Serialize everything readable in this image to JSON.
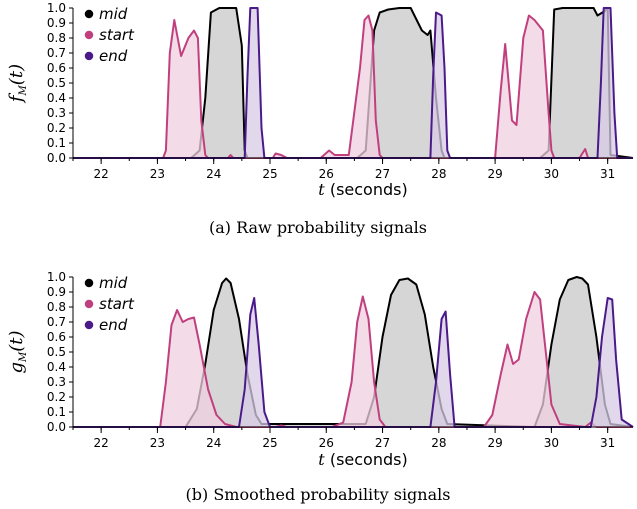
{
  "colors": {
    "mid": "#000000",
    "start": "#c0407f",
    "end": "#4b1a8a",
    "mid_fill": "#c8c8c8",
    "start_fill": "#f0cfe0",
    "end_fill": "#d8cbe6"
  },
  "chart_data": [
    {
      "type": "area",
      "caption": "(a) Raw probability signals",
      "ylabel_main": "f",
      "ylabel_sub": "M",
      "ylabel_arg": "(t)",
      "xlabel_var": "t",
      "xlabel_unit": " (seconds)",
      "xlim": [
        21.5,
        31.45
      ],
      "ylim": [
        0,
        1.0
      ],
      "x_ticks": [
        "22",
        "23",
        "24",
        "25",
        "26",
        "27",
        "28",
        "29",
        "30",
        "31"
      ],
      "y_ticks": [
        "0.0",
        "0.1",
        "0.2",
        "0.3",
        "0.4",
        "0.5",
        "0.6",
        "0.7",
        "0.8",
        "0.9",
        "1.0"
      ],
      "legend": {
        "placement": "top-left",
        "entries": [
          "mid",
          "start",
          "end"
        ]
      },
      "series": [
        {
          "name": "mid",
          "x": [
            21.5,
            23.6,
            23.75,
            23.85,
            23.95,
            24.1,
            24.3,
            24.4,
            24.5,
            24.55,
            24.6,
            26.55,
            26.7,
            26.85,
            26.95,
            27.1,
            27.3,
            27.5,
            27.7,
            27.8,
            27.85,
            27.95,
            28.05,
            28.1,
            28.15,
            29.8,
            29.95,
            30.05,
            30.2,
            30.5,
            30.75,
            30.82,
            30.95,
            31.0,
            31.05,
            31.45
          ],
          "y": [
            0,
            0,
            0.05,
            0.4,
            0.97,
            1.0,
            1.0,
            1.0,
            0.75,
            0.05,
            0,
            0,
            0.05,
            0.85,
            0.97,
            0.99,
            1.0,
            1.0,
            0.85,
            0.82,
            0.85,
            0.4,
            0.05,
            0,
            0,
            0,
            0.05,
            0.99,
            1.0,
            1.0,
            1.0,
            0.95,
            0.98,
            1.0,
            0.02,
            0
          ]
        },
        {
          "name": "start",
          "x": [
            21.5,
            23.1,
            23.15,
            23.22,
            23.3,
            23.42,
            23.55,
            23.65,
            23.72,
            23.78,
            23.85,
            23.9,
            24.25,
            24.3,
            24.35,
            24.5,
            25.05,
            25.1,
            25.2,
            25.3,
            25.9,
            26.05,
            26.15,
            26.4,
            26.6,
            26.68,
            26.75,
            26.82,
            26.88,
            26.95,
            27.0,
            29.0,
            29.1,
            29.18,
            29.3,
            29.38,
            29.5,
            29.6,
            29.7,
            29.85,
            29.95,
            30.0,
            30.05,
            30.5,
            30.55,
            30.6,
            30.65,
            31.45
          ],
          "y": [
            0,
            0,
            0.05,
            0.7,
            0.92,
            0.68,
            0.8,
            0.85,
            0.8,
            0.25,
            0.02,
            0,
            0,
            0.02,
            0,
            0,
            0,
            0.03,
            0.02,
            0,
            0,
            0.05,
            0.02,
            0.02,
            0.6,
            0.92,
            0.95,
            0.85,
            0.25,
            0.02,
            0,
            0,
            0.45,
            0.76,
            0.25,
            0.22,
            0.8,
            0.95,
            0.92,
            0.85,
            0.3,
            0.05,
            0,
            0,
            0.03,
            0.06,
            0,
            0
          ]
        },
        {
          "name": "end",
          "x": [
            21.5,
            24.55,
            24.6,
            24.65,
            24.78,
            24.85,
            24.9,
            27.85,
            27.9,
            27.95,
            28.05,
            28.1,
            28.15,
            28.2,
            30.82,
            30.88,
            30.93,
            31.05,
            31.12,
            31.17,
            31.45
          ],
          "y": [
            0,
            0,
            0.55,
            1.0,
            1.0,
            0.2,
            0,
            0,
            0.55,
            0.97,
            0.95,
            0.6,
            0.05,
            0,
            0,
            0.5,
            1.0,
            1.0,
            0.3,
            0,
            0
          ]
        }
      ]
    },
    {
      "type": "area",
      "caption": "(b) Smoothed probability signals",
      "ylabel_main": "g",
      "ylabel_sub": "M",
      "ylabel_arg": "(t)",
      "xlabel_var": "t",
      "xlabel_unit": " (seconds)",
      "xlim": [
        21.5,
        31.45
      ],
      "ylim": [
        0,
        1.0
      ],
      "x_ticks": [
        "22",
        "23",
        "24",
        "25",
        "26",
        "27",
        "28",
        "29",
        "30",
        "31"
      ],
      "y_ticks": [
        "0.0",
        "0.1",
        "0.2",
        "0.3",
        "0.4",
        "0.5",
        "0.6",
        "0.7",
        "0.8",
        "0.9",
        "1.0"
      ],
      "legend": {
        "placement": "top-left",
        "entries": [
          "mid",
          "start",
          "end"
        ]
      },
      "series": [
        {
          "name": "mid",
          "x": [
            21.5,
            23.5,
            23.7,
            23.85,
            24.0,
            24.15,
            24.22,
            24.3,
            24.45,
            24.6,
            24.75,
            24.85,
            26.7,
            26.85,
            27.0,
            27.15,
            27.3,
            27.45,
            27.6,
            27.75,
            27.9,
            28.05,
            28.15,
            29.7,
            29.85,
            30.0,
            30.15,
            30.3,
            30.45,
            30.55,
            30.65,
            30.8,
            30.95,
            31.05,
            31.45
          ],
          "y": [
            0,
            0,
            0.12,
            0.42,
            0.78,
            0.96,
            0.99,
            0.96,
            0.72,
            0.35,
            0.08,
            0.02,
            0.02,
            0.2,
            0.6,
            0.88,
            0.98,
            0.99,
            0.95,
            0.75,
            0.4,
            0.12,
            0.02,
            0,
            0.15,
            0.55,
            0.85,
            0.98,
            1.0,
            0.99,
            0.95,
            0.6,
            0.15,
            0.02,
            0
          ]
        },
        {
          "name": "start",
          "x": [
            21.5,
            23.05,
            23.15,
            23.25,
            23.35,
            23.45,
            23.55,
            23.65,
            23.75,
            23.9,
            24.05,
            24.2,
            24.4,
            25.1,
            25.2,
            25.3,
            26.1,
            26.3,
            26.45,
            26.55,
            26.65,
            26.75,
            26.85,
            26.95,
            27.05,
            28.8,
            28.95,
            29.1,
            29.22,
            29.32,
            29.42,
            29.55,
            29.7,
            29.8,
            29.9,
            30.0,
            30.15,
            30.6,
            30.7,
            30.8,
            31.45
          ],
          "y": [
            0,
            0,
            0.3,
            0.68,
            0.78,
            0.7,
            0.72,
            0.73,
            0.55,
            0.25,
            0.08,
            0.02,
            0,
            0,
            0.01,
            0,
            0,
            0.03,
            0.3,
            0.7,
            0.87,
            0.72,
            0.3,
            0.05,
            0,
            0,
            0.08,
            0.35,
            0.55,
            0.42,
            0.45,
            0.72,
            0.9,
            0.85,
            0.5,
            0.15,
            0.02,
            0,
            0.03,
            0,
            0
          ]
        },
        {
          "name": "end",
          "x": [
            21.5,
            24.45,
            24.55,
            24.65,
            24.72,
            24.8,
            24.9,
            25.0,
            27.85,
            27.95,
            28.05,
            28.12,
            28.2,
            28.28,
            30.7,
            30.8,
            30.9,
            31.0,
            31.08,
            31.15,
            31.25,
            31.45
          ],
          "y": [
            0,
            0,
            0.25,
            0.75,
            0.86,
            0.55,
            0.1,
            0,
            0,
            0.3,
            0.72,
            0.77,
            0.35,
            0,
            0,
            0.2,
            0.6,
            0.86,
            0.85,
            0.45,
            0.05,
            0
          ]
        }
      ]
    }
  ]
}
